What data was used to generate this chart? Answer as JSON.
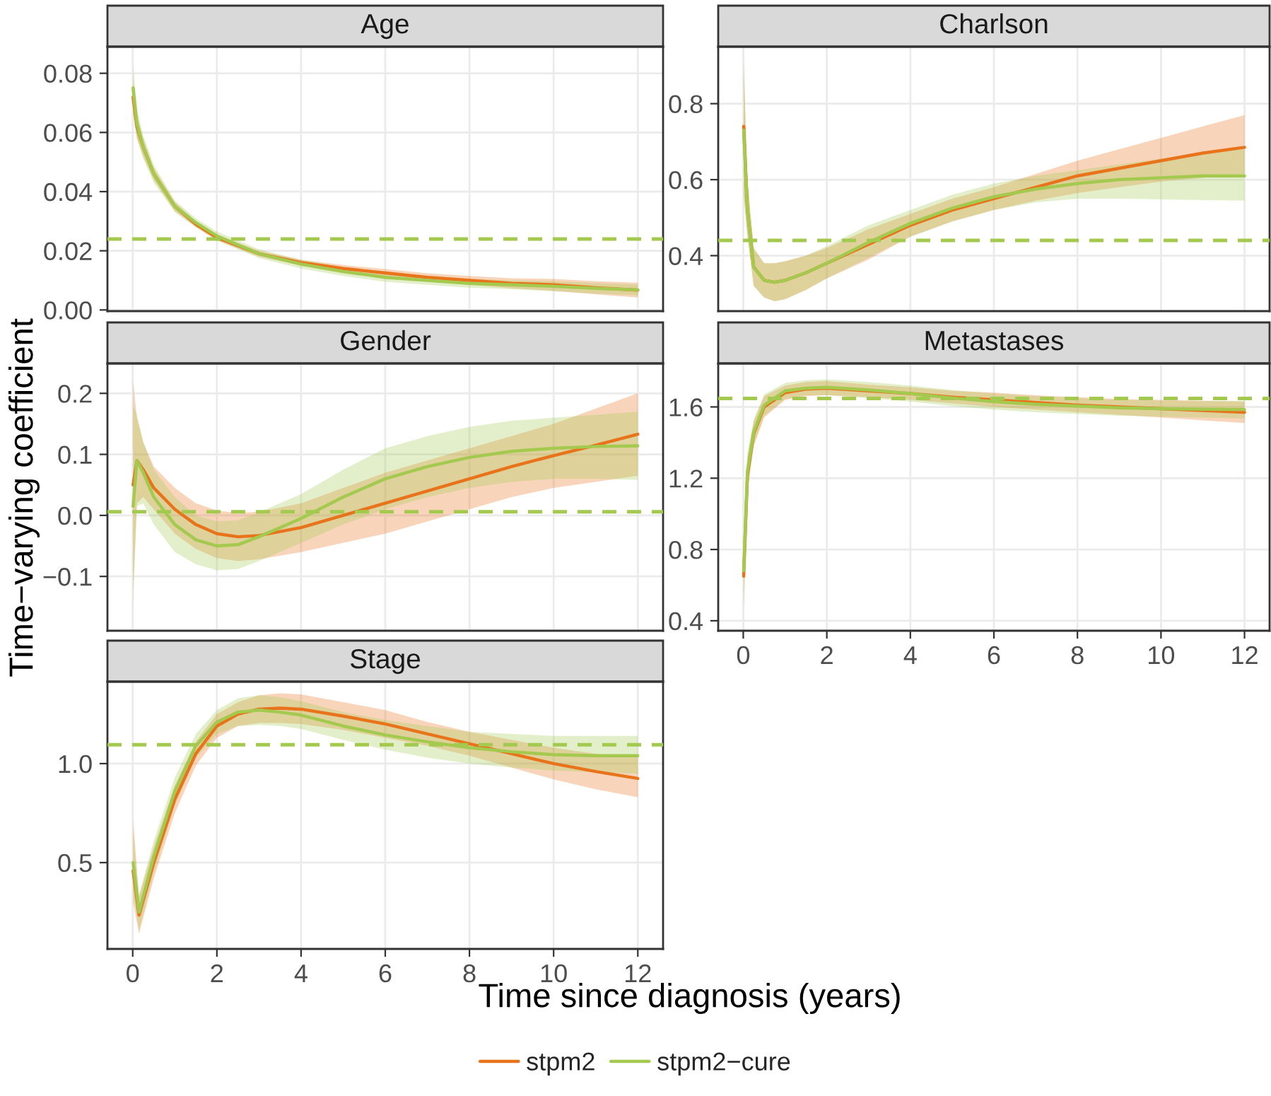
{
  "chart_data": [
    {
      "type": "line",
      "title": "Age",
      "x": [
        0.01,
        0.1,
        0.25,
        0.5,
        1,
        1.5,
        2,
        3,
        4,
        5,
        6,
        7,
        8,
        9,
        10,
        11,
        12
      ],
      "xlim": [
        -0.6,
        12.6
      ],
      "xticks": [
        0,
        2,
        4,
        6,
        8,
        10,
        12
      ],
      "ylim": [
        -0.0004,
        0.089
      ],
      "yticks": [
        {
          "value": 0,
          "label": "0.00"
        },
        0.02,
        0.04,
        0.06,
        0.08
      ],
      "tick_labels": "y",
      "grid": true,
      "legend": "bottom",
      "ref_lines": [
        {
          "axis": "y",
          "value": 0.024,
          "color": "#a3c94f",
          "line_style": "dashed"
        }
      ],
      "series": [
        {
          "name": "stpm2",
          "color": "#e8731a",
          "values": [
            0.072,
            0.062,
            0.055,
            0.046,
            0.035,
            0.029,
            0.0245,
            0.019,
            0.016,
            0.014,
            0.0125,
            0.011,
            0.01,
            0.009,
            0.0085,
            0.0075,
            0.0067
          ],
          "lower": [
            0.066,
            0.058,
            0.052,
            0.044,
            0.0335,
            0.028,
            0.0235,
            0.018,
            0.015,
            0.0128,
            0.0112,
            0.0096,
            0.0085,
            0.0073,
            0.0065,
            0.0053,
            0.0042
          ],
          "upper": [
            0.078,
            0.066,
            0.058,
            0.048,
            0.0365,
            0.03,
            0.0255,
            0.02,
            0.017,
            0.0152,
            0.0138,
            0.0124,
            0.0115,
            0.0107,
            0.0105,
            0.0097,
            0.0092
          ]
        },
        {
          "name": "stpm2−cure",
          "color": "#a3c94f",
          "values": [
            0.075,
            0.063,
            0.055,
            0.046,
            0.035,
            0.0295,
            0.025,
            0.019,
            0.0155,
            0.013,
            0.011,
            0.01,
            0.009,
            0.0085,
            0.008,
            0.0073,
            0.0068
          ],
          "lower": [
            0.067,
            0.058,
            0.051,
            0.043,
            0.033,
            0.028,
            0.0235,
            0.0175,
            0.014,
            0.0115,
            0.0095,
            0.0085,
            0.0075,
            0.007,
            0.0063,
            0.0055,
            0.005
          ],
          "upper": [
            0.083,
            0.068,
            0.059,
            0.049,
            0.037,
            0.031,
            0.0265,
            0.0205,
            0.017,
            0.0145,
            0.0125,
            0.0115,
            0.0105,
            0.01,
            0.0097,
            0.0091,
            0.0086
          ]
        }
      ]
    },
    {
      "type": "line",
      "title": "Charlson",
      "x": [
        0.01,
        0.1,
        0.25,
        0.5,
        0.75,
        1,
        1.5,
        2,
        3,
        4,
        5,
        6,
        7,
        8,
        9,
        10,
        11,
        12
      ],
      "xlim": [
        -0.6,
        12.6
      ],
      "xticks": [
        0,
        2,
        4,
        6,
        8,
        10,
        12
      ],
      "ylim": [
        0.254,
        0.95
      ],
      "yticks": [
        0.4,
        0.6,
        0.8
      ],
      "tick_labels": "y",
      "grid": true,
      "ref_lines": [
        {
          "axis": "y",
          "value": 0.44,
          "color": "#a3c94f",
          "line_style": "dashed"
        }
      ],
      "series": [
        {
          "name": "stpm2",
          "color": "#e8731a",
          "values": [
            0.74,
            0.52,
            0.37,
            0.335,
            0.33,
            0.335,
            0.355,
            0.38,
            0.43,
            0.48,
            0.52,
            0.55,
            0.58,
            0.61,
            0.63,
            0.65,
            0.67,
            0.685
          ],
          "lower": [
            0.56,
            0.45,
            0.32,
            0.29,
            0.28,
            0.285,
            0.31,
            0.34,
            0.39,
            0.45,
            0.49,
            0.52,
            0.545,
            0.565,
            0.58,
            0.595,
            0.605,
            0.615
          ],
          "upper": [
            0.92,
            0.6,
            0.42,
            0.38,
            0.38,
            0.385,
            0.4,
            0.42,
            0.47,
            0.51,
            0.55,
            0.58,
            0.615,
            0.65,
            0.68,
            0.71,
            0.74,
            0.77
          ]
        },
        {
          "name": "stpm2−cure",
          "color": "#a3c94f",
          "values": [
            0.73,
            0.52,
            0.37,
            0.335,
            0.33,
            0.335,
            0.355,
            0.38,
            0.435,
            0.485,
            0.525,
            0.555,
            0.575,
            0.59,
            0.6,
            0.605,
            0.61,
            0.61
          ],
          "lower": [
            0.56,
            0.45,
            0.32,
            0.29,
            0.28,
            0.285,
            0.31,
            0.34,
            0.395,
            0.45,
            0.49,
            0.52,
            0.54,
            0.55,
            0.55,
            0.548,
            0.546,
            0.545
          ],
          "upper": [
            0.9,
            0.6,
            0.42,
            0.38,
            0.38,
            0.385,
            0.4,
            0.425,
            0.48,
            0.52,
            0.56,
            0.59,
            0.61,
            0.625,
            0.64,
            0.655,
            0.67,
            0.68
          ]
        }
      ]
    },
    {
      "type": "line",
      "title": "Gender",
      "ylabel": "Time−varying coefficient",
      "x": [
        0.01,
        0.1,
        0.25,
        0.5,
        1,
        1.5,
        2,
        2.5,
        3,
        4,
        5,
        6,
        7,
        8,
        9,
        10,
        11,
        12
      ],
      "xlim": [
        -0.6,
        12.6
      ],
      "xticks": [
        0,
        2,
        4,
        6,
        8,
        10,
        12
      ],
      "ylim": [
        -0.189,
        0.249
      ],
      "yticks": [
        {
          "value": -0.1,
          "label": "−0.1"
        },
        {
          "value": 0,
          "label": "0.0"
        },
        0.1,
        0.2
      ],
      "tick_labels": "y",
      "grid": true,
      "ref_lines": [
        {
          "axis": "y",
          "value": 0.006,
          "color": "#a3c94f",
          "line_style": "dashed"
        }
      ],
      "series": [
        {
          "name": "stpm2",
          "color": "#e8731a",
          "values": [
            0.05,
            0.09,
            0.075,
            0.045,
            0.01,
            -0.015,
            -0.03,
            -0.035,
            -0.033,
            -0.02,
            0.0,
            0.02,
            0.04,
            0.06,
            0.08,
            0.098,
            0.115,
            0.133
          ],
          "lower": [
            -0.12,
            0.02,
            0.03,
            0.01,
            -0.03,
            -0.055,
            -0.07,
            -0.075,
            -0.072,
            -0.06,
            -0.045,
            -0.03,
            -0.01,
            0.01,
            0.03,
            0.045,
            0.055,
            0.065
          ],
          "upper": [
            0.22,
            0.16,
            0.12,
            0.08,
            0.045,
            0.02,
            0.008,
            0.004,
            0.006,
            0.02,
            0.045,
            0.07,
            0.09,
            0.11,
            0.13,
            0.15,
            0.175,
            0.2
          ]
        },
        {
          "name": "stpm2−cure",
          "color": "#a3c94f",
          "values": [
            0.015,
            0.09,
            0.07,
            0.03,
            -0.015,
            -0.04,
            -0.05,
            -0.048,
            -0.035,
            -0.005,
            0.03,
            0.06,
            0.08,
            0.095,
            0.105,
            0.11,
            0.113,
            0.114
          ],
          "lower": [
            -0.15,
            0.015,
            0.02,
            -0.015,
            -0.06,
            -0.08,
            -0.09,
            -0.088,
            -0.075,
            -0.045,
            -0.015,
            0.01,
            0.03,
            0.045,
            0.055,
            0.06,
            0.06,
            0.058
          ],
          "upper": [
            0.18,
            0.165,
            0.12,
            0.075,
            0.03,
            0.0,
            -0.01,
            -0.008,
            0.005,
            0.035,
            0.075,
            0.11,
            0.13,
            0.145,
            0.155,
            0.16,
            0.165,
            0.17
          ]
        }
      ]
    },
    {
      "type": "line",
      "title": "Metastases",
      "x": [
        0.01,
        0.1,
        0.25,
        0.5,
        1,
        1.5,
        2,
        3,
        4,
        5,
        6,
        7,
        8,
        9,
        10,
        11,
        12
      ],
      "xlim": [
        -0.6,
        12.6
      ],
      "xticks": [
        0,
        2,
        4,
        6,
        8,
        10,
        12
      ],
      "ylim": [
        0.344,
        1.844
      ],
      "yticks": [
        0.4,
        0.8,
        1.2,
        1.6
      ],
      "grid": true,
      "ref_lines": [
        {
          "axis": "y",
          "value": 1.648,
          "color": "#a3c94f",
          "line_style": "dashed"
        }
      ],
      "series": [
        {
          "name": "stpm2",
          "color": "#e8731a",
          "values": [
            0.65,
            1.22,
            1.45,
            1.6,
            1.68,
            1.7,
            1.705,
            1.69,
            1.675,
            1.655,
            1.64,
            1.625,
            1.61,
            1.6,
            1.59,
            1.58,
            1.57
          ],
          "lower": [
            0.45,
            1.12,
            1.38,
            1.54,
            1.64,
            1.66,
            1.665,
            1.655,
            1.64,
            1.62,
            1.6,
            1.585,
            1.57,
            1.555,
            1.54,
            1.525,
            1.51
          ],
          "upper": [
            0.85,
            1.32,
            1.52,
            1.66,
            1.72,
            1.74,
            1.745,
            1.725,
            1.71,
            1.69,
            1.68,
            1.665,
            1.655,
            1.645,
            1.64,
            1.635,
            1.63
          ]
        },
        {
          "name": "stpm2−cure",
          "color": "#a3c94f",
          "values": [
            0.68,
            1.24,
            1.46,
            1.61,
            1.69,
            1.705,
            1.71,
            1.695,
            1.675,
            1.65,
            1.63,
            1.615,
            1.605,
            1.595,
            1.59,
            1.587,
            1.585
          ],
          "lower": [
            0.5,
            1.14,
            1.39,
            1.55,
            1.645,
            1.665,
            1.665,
            1.65,
            1.63,
            1.605,
            1.585,
            1.57,
            1.56,
            1.55,
            1.545,
            1.54,
            1.535
          ],
          "upper": [
            0.86,
            1.34,
            1.53,
            1.67,
            1.735,
            1.75,
            1.755,
            1.74,
            1.72,
            1.695,
            1.675,
            1.66,
            1.65,
            1.64,
            1.635,
            1.633,
            1.635
          ]
        }
      ]
    },
    {
      "type": "line",
      "title": "Stage",
      "xlabel": "Time since diagnosis (years)",
      "legend": "bottom",
      "x": [
        0.01,
        0.15,
        0.5,
        1,
        1.5,
        2,
        2.5,
        3,
        3.5,
        4,
        5,
        6,
        7,
        8,
        9,
        10,
        11,
        12
      ],
      "xlim": [
        -0.6,
        12.6
      ],
      "xticks": [
        0,
        2,
        4,
        6,
        8,
        10,
        12
      ],
      "ylim": [
        0.064,
        1.414
      ],
      "yticks": [
        0.5,
        {
          "value": 1,
          "label": "1.0"
        }
      ],
      "grid": true,
      "ref_lines": [
        {
          "axis": "y",
          "value": 1.095,
          "color": "#a3c94f",
          "line_style": "dashed"
        }
      ],
      "series": [
        {
          "name": "stpm2",
          "color": "#e8731a",
          "values": [
            0.46,
            0.235,
            0.5,
            0.82,
            1.05,
            1.19,
            1.25,
            1.275,
            1.28,
            1.275,
            1.24,
            1.2,
            1.15,
            1.1,
            1.05,
            1.0,
            0.96,
            0.925
          ],
          "lower": [
            0.3,
            0.14,
            0.42,
            0.75,
            0.99,
            1.13,
            1.19,
            1.205,
            1.205,
            1.2,
            1.17,
            1.13,
            1.09,
            1.04,
            0.98,
            0.92,
            0.87,
            0.83
          ],
          "upper": [
            0.72,
            0.33,
            0.58,
            0.89,
            1.11,
            1.25,
            1.31,
            1.345,
            1.355,
            1.35,
            1.31,
            1.27,
            1.21,
            1.16,
            1.12,
            1.08,
            1.05,
            1.03
          ]
        },
        {
          "name": "stpm2−cure",
          "color": "#a3c94f",
          "values": [
            0.5,
            0.25,
            0.53,
            0.86,
            1.09,
            1.21,
            1.26,
            1.27,
            1.26,
            1.245,
            1.19,
            1.145,
            1.11,
            1.08,
            1.06,
            1.045,
            1.04,
            1.04
          ],
          "lower": [
            0.35,
            0.16,
            0.45,
            0.79,
            1.03,
            1.15,
            1.19,
            1.195,
            1.19,
            1.175,
            1.12,
            1.07,
            1.03,
            1.0,
            0.98,
            0.965,
            0.955,
            0.95
          ],
          "upper": [
            0.65,
            0.34,
            0.61,
            0.93,
            1.15,
            1.27,
            1.33,
            1.345,
            1.335,
            1.315,
            1.26,
            1.22,
            1.19,
            1.16,
            1.15,
            1.14,
            1.14,
            1.14
          ]
        }
      ]
    }
  ]
}
